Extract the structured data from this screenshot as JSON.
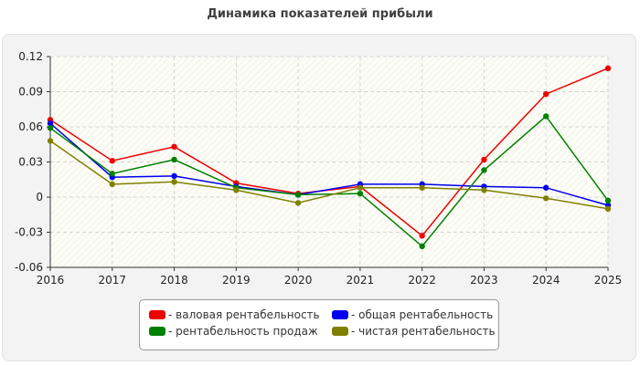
{
  "chart_data": {
    "type": "line",
    "title": "Динамика показателей прибыли",
    "xlabel": "",
    "ylabel": "",
    "x": [
      "2016",
      "2017",
      "2018",
      "2019",
      "2020",
      "2021",
      "2022",
      "2023",
      "2024",
      "2025"
    ],
    "ylim": [
      -0.06,
      0.12
    ],
    "yticks": [
      0.12,
      0.09,
      0.06,
      0.03,
      0,
      -0.03,
      -0.06
    ],
    "ytick_labels": [
      "0.12",
      "0.09",
      "0.06",
      "0.03",
      "0",
      "-0.03",
      "-0.06"
    ],
    "grid": true,
    "legend_position": "bottom",
    "series": [
      {
        "name": "- валовая рентабельность",
        "color": "#ee0000",
        "values": [
          0.066,
          0.031,
          0.043,
          0.012,
          0.003,
          0.009,
          -0.033,
          0.032,
          0.088,
          0.11
        ]
      },
      {
        "name": "- общая рентабельность",
        "color": "#0000ee",
        "values": [
          0.063,
          0.017,
          0.018,
          0.009,
          0.002,
          0.011,
          0.011,
          0.009,
          0.008,
          -0.007
        ]
      },
      {
        "name": "- рентабельность продаж",
        "color": "#008000",
        "values": [
          0.059,
          0.02,
          0.032,
          0.008,
          0.002,
          0.003,
          -0.042,
          0.023,
          0.069,
          -0.003
        ]
      },
      {
        "name": "- чистая рентабельность",
        "color": "#808000",
        "values": [
          0.048,
          0.011,
          0.013,
          0.006,
          -0.005,
          0.008,
          0.008,
          0.006,
          -0.001,
          -0.01
        ]
      }
    ]
  },
  "legend": {
    "items": [
      {
        "label": "- валовая рентабельность",
        "color": "#ee0000"
      },
      {
        "label": "- общая рентабельность",
        "color": "#0000ee"
      },
      {
        "label": "- рентабельность продаж",
        "color": "#008000"
      },
      {
        "label": "- чистая рентабельность",
        "color": "#808000"
      }
    ]
  }
}
